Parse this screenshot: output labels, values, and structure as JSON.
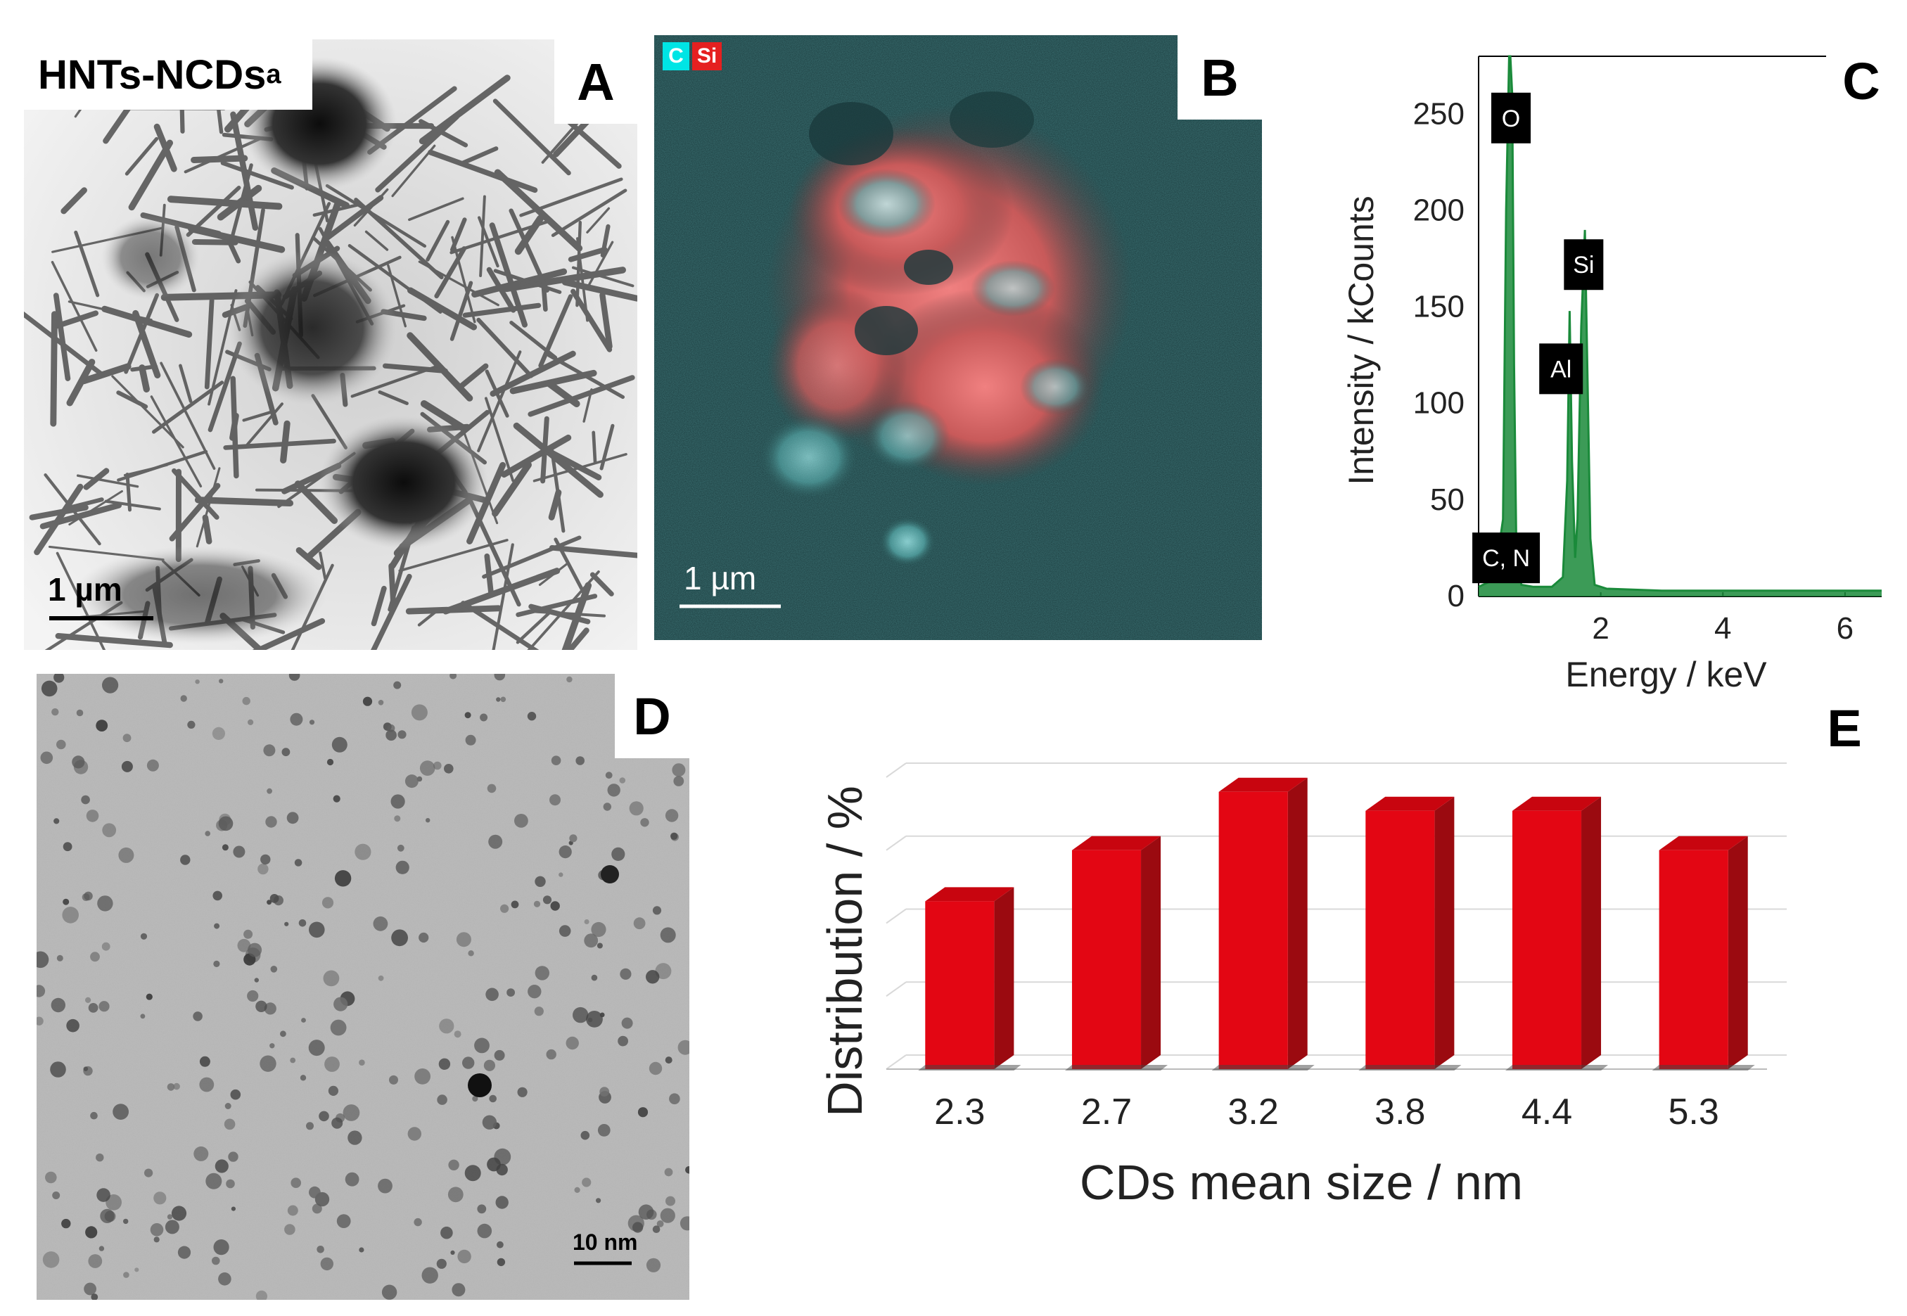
{
  "figure": {
    "panel_labels": {
      "a": "A",
      "b": "B",
      "c": "C",
      "d": "D",
      "e": "E"
    },
    "panel_a": {
      "sample_label": "HNTs-NCDs",
      "sample_subscript": "a",
      "scale_label": "1 µm"
    },
    "panel_b": {
      "legend": [
        "C",
        "Si"
      ],
      "scale_label": "1 µm",
      "colors": {
        "carbon": "#00e5e5",
        "silicon": "#e53333",
        "background": "#1a3a3c"
      }
    },
    "panel_d": {
      "scale_label": "10 nm"
    }
  },
  "chart_data": [
    {
      "type": "line",
      "panel": "C",
      "title": "",
      "xlabel": "Energy / keV",
      "ylabel": "Intensity / kCounts",
      "xlim": [
        0,
        6.6
      ],
      "ylim": [
        0,
        280
      ],
      "xticks": [
        2,
        4,
        6
      ],
      "yticks": [
        0,
        50,
        100,
        150,
        200,
        250
      ],
      "series": [
        {
          "color": "#1a8a3a",
          "x": [
            0.0,
            0.2,
            0.28,
            0.4,
            0.45,
            0.5,
            0.52,
            0.55,
            0.58,
            0.62,
            0.7,
            0.9,
            1.2,
            1.38,
            1.45,
            1.49,
            1.53,
            1.58,
            1.62,
            1.68,
            1.74,
            1.78,
            1.83,
            1.9,
            2.1,
            3.0,
            4.0,
            5.0,
            6.0,
            6.6
          ],
          "y": [
            5,
            8,
            14,
            40,
            200,
            280,
            290,
            260,
            120,
            20,
            6,
            5,
            5,
            10,
            60,
            148,
            70,
            20,
            40,
            140,
            190,
            120,
            30,
            6,
            4,
            3,
            3,
            3,
            3,
            3
          ]
        }
      ],
      "annotations": [
        "O",
        "Si",
        "Al",
        "C, N"
      ]
    },
    {
      "type": "bar",
      "panel": "E",
      "title": "",
      "xlabel": "CDs mean size / nm",
      "ylabel": "Distribution  / %",
      "categories": [
        "2.3",
        "2.7",
        "3.2",
        "3.8",
        "4.4",
        "5.3"
      ],
      "values": [
        11.5,
        15,
        19,
        17.7,
        17.7,
        15
      ],
      "ylim": [
        0,
        20
      ],
      "grid": true,
      "colors": {
        "bar_front": "#e30613",
        "bar_side": "#9b0a10",
        "bar_top": "#c8050f",
        "grid": "#d9d9d9"
      }
    }
  ]
}
